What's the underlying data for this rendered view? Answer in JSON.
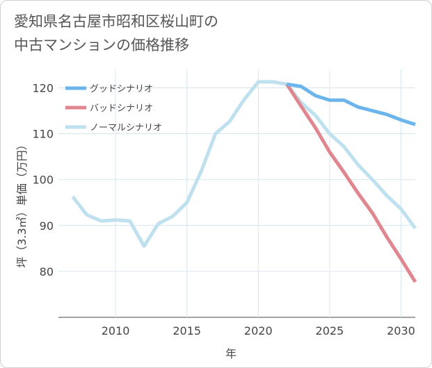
{
  "title": "愛知県名古屋市昭和区桜山町の\n中古マンションの価格推移",
  "chart_data": {
    "type": "line",
    "title": "愛知県名古屋市昭和区桜山町の中古マンションの価格推移",
    "xlabel": "年",
    "ylabel": "坪（3.3㎡）単価（万円）",
    "xlim": [
      2006,
      2031
    ],
    "ylim": [
      70,
      124
    ],
    "xticks": [
      2010,
      2015,
      2020,
      2025,
      2030
    ],
    "yticks": [
      80,
      90,
      100,
      110,
      120
    ],
    "grid": true,
    "legend_position": "top-left",
    "series": [
      {
        "name": "グッドシナリオ",
        "color": "#6bb5ec",
        "x": [
          2022,
          2023,
          2024,
          2025,
          2026,
          2027,
          2028,
          2029,
          2030,
          2031
        ],
        "values": [
          120.8,
          120.3,
          118.3,
          117.3,
          117.3,
          115.8,
          115.0,
          114.2,
          113.0,
          112.0
        ]
      },
      {
        "name": "バッドシナリオ",
        "color": "#e0868f",
        "x": [
          2022,
          2023,
          2024,
          2025,
          2026,
          2027,
          2028,
          2029,
          2030,
          2031
        ],
        "values": [
          120.8,
          116.0,
          111.3,
          106.0,
          101.6,
          97.0,
          92.7,
          87.5,
          82.7,
          77.7
        ]
      },
      {
        "name": "ノーマルシナリオ",
        "color": "#bfe0ee",
        "x": [
          2007,
          2008,
          2009,
          2010,
          2011,
          2012,
          2013,
          2014,
          2015,
          2016,
          2017,
          2018,
          2019,
          2020,
          2021,
          2022,
          2023,
          2024,
          2025,
          2026,
          2027,
          2028,
          2029,
          2030,
          2031
        ],
        "values": [
          96.3,
          92.3,
          91.0,
          91.2,
          91.0,
          85.5,
          90.4,
          92.0,
          95.0,
          101.8,
          110.0,
          112.7,
          117.4,
          121.3,
          121.3,
          120.8,
          116.8,
          114.0,
          110.0,
          107.2,
          103.2,
          100.0,
          96.5,
          93.6,
          89.4
        ]
      }
    ]
  }
}
